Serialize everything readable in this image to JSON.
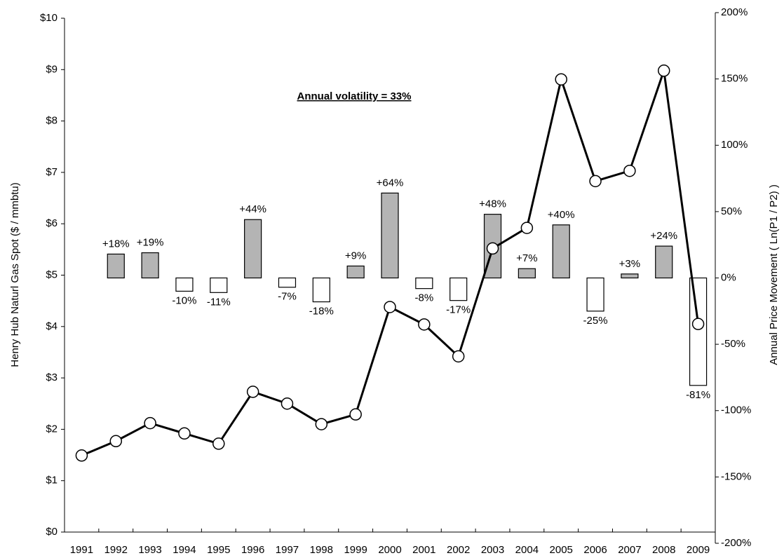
{
  "chart_data": {
    "type": "bar-line",
    "annotation": "Annual volatility = 33%",
    "ylabel": "Henry Hub Naturl Gas Spot ($ / mmbtu)",
    "y2label": "Annual Price Movement ( Ln(P1 / P2) )",
    "categories": [
      "1991",
      "1992",
      "1993",
      "1994",
      "1995",
      "1996",
      "1997",
      "1998",
      "1999",
      "2000",
      "2001",
      "2002",
      "2003",
      "2004",
      "2005",
      "2006",
      "2007",
      "2008",
      "2009"
    ],
    "series": [
      {
        "type": "line",
        "color": "#000000",
        "values": [
          1.49,
          1.77,
          2.12,
          1.92,
          1.72,
          2.73,
          2.5,
          2.1,
          2.29,
          4.38,
          4.04,
          3.42,
          5.52,
          5.92,
          8.81,
          6.83,
          7.03,
          8.98,
          4.05
        ]
      },
      {
        "type": "bar",
        "axis": "y2",
        "positive_color": "#b4b4b4",
        "negative_color": "#ffffff",
        "values": [
          null,
          18,
          19,
          -10,
          -11,
          44,
          -7,
          -18,
          9,
          64,
          -8,
          -17,
          48,
          7,
          40,
          -25,
          3,
          24,
          -81
        ],
        "value_labels": [
          null,
          "+18%",
          "+19%",
          "-10%",
          "-11%",
          "+44%",
          "-7%",
          "-18%",
          "+9%",
          "+64%",
          "-8%",
          "-17%",
          "+48%",
          "+7%",
          "+40%",
          "-25%",
          "+3%",
          "+24%",
          "-81%"
        ]
      }
    ],
    "ylim": [
      0,
      10
    ],
    "yticks": [
      {
        "value": 0,
        "label": "$0"
      },
      {
        "value": 1,
        "label": "$1"
      },
      {
        "value": 2,
        "label": "$2"
      },
      {
        "value": 3,
        "label": "$3"
      },
      {
        "value": 4,
        "label": "$4"
      },
      {
        "value": 5,
        "label": "$5"
      },
      {
        "value": 6,
        "label": "$6"
      },
      {
        "value": 7,
        "label": "$7"
      },
      {
        "value": 8,
        "label": "$8"
      },
      {
        "value": 9,
        "label": "$9"
      },
      {
        "value": 10,
        "label": "$10"
      }
    ],
    "y2lim": [
      -200,
      200
    ],
    "y2ticks": [
      {
        "value": -200,
        "label": "-200%"
      },
      {
        "value": -150,
        "label": "-150%"
      },
      {
        "value": -100,
        "label": "-100%"
      },
      {
        "value": -50,
        "label": "-50%"
      },
      {
        "value": 0,
        "label": "0%"
      },
      {
        "value": 50,
        "label": "50%"
      },
      {
        "value": 100,
        "label": "100%"
      },
      {
        "value": 150,
        "label": "150%"
      },
      {
        "value": 200,
        "label": "200%"
      }
    ],
    "grid": false
  }
}
